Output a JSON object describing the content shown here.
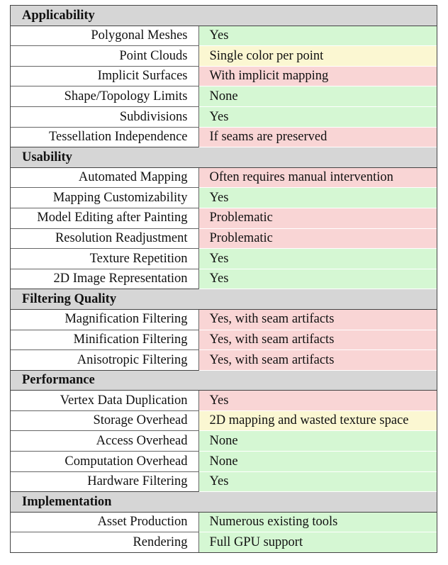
{
  "colors": {
    "green": "#d5f7d3",
    "red": "#f9d5d5",
    "yellow": "#fbf7d2",
    "section": "#d6d6d6"
  },
  "sections": [
    {
      "title": "Applicability",
      "rows": [
        {
          "label": "Polygonal Meshes",
          "value": "Yes",
          "status": "green"
        },
        {
          "label": "Point Clouds",
          "value": "Single color per point",
          "status": "yellow"
        },
        {
          "label": "Implicit Surfaces",
          "value": "With implicit mapping",
          "status": "red"
        },
        {
          "label": "Shape/Topology Limits",
          "value": "None",
          "status": "green"
        },
        {
          "label": "Subdivisions",
          "value": "Yes",
          "status": "green"
        },
        {
          "label": "Tessellation Independence",
          "value": "If seams are preserved",
          "status": "red"
        }
      ]
    },
    {
      "title": "Usability",
      "rows": [
        {
          "label": "Automated Mapping",
          "value": "Often requires manual intervention",
          "status": "red"
        },
        {
          "label": "Mapping Customizability",
          "value": "Yes",
          "status": "green"
        },
        {
          "label": "Model Editing after Painting",
          "value": "Problematic",
          "status": "red"
        },
        {
          "label": "Resolution Readjustment",
          "value": "Problematic",
          "status": "red"
        },
        {
          "label": "Texture Repetition",
          "value": "Yes",
          "status": "green"
        },
        {
          "label": "2D Image Representation",
          "value": "Yes",
          "status": "green"
        }
      ]
    },
    {
      "title": "Filtering Quality",
      "rows": [
        {
          "label": "Magnification Filtering",
          "value": "Yes, with seam artifacts",
          "status": "red"
        },
        {
          "label": "Minification Filtering",
          "value": "Yes, with seam artifacts",
          "status": "red"
        },
        {
          "label": "Anisotropic Filtering",
          "value": "Yes, with seam artifacts",
          "status": "red"
        }
      ]
    },
    {
      "title": "Performance",
      "rows": [
        {
          "label": "Vertex Data Duplication",
          "value": "Yes",
          "status": "red"
        },
        {
          "label": "Storage Overhead",
          "value": "2D mapping and wasted texture space",
          "status": "yellow"
        },
        {
          "label": "Access Overhead",
          "value": "None",
          "status": "green"
        },
        {
          "label": "Computation Overhead",
          "value": "None",
          "status": "green"
        },
        {
          "label": "Hardware Filtering",
          "value": "Yes",
          "status": "green"
        }
      ]
    },
    {
      "title": "Implementation",
      "rows": [
        {
          "label": "Asset Production",
          "value": "Numerous existing tools",
          "status": "green"
        },
        {
          "label": "Rendering",
          "value": "Full GPU support",
          "status": "green"
        }
      ]
    }
  ]
}
